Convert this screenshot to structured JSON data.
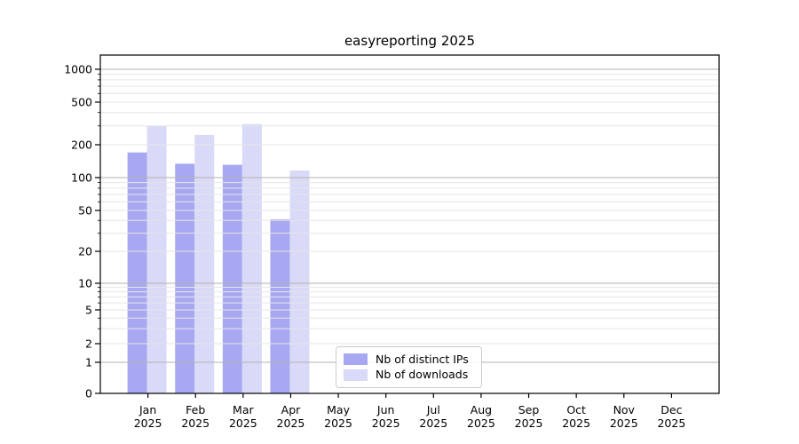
{
  "chart_data": {
    "type": "bar",
    "title": "easyreporting 2025",
    "categories": [
      "Jan 2025",
      "Feb 2025",
      "Mar 2025",
      "Apr 2025",
      "May 2025",
      "Jun 2025",
      "Jul 2025",
      "Aug 2025",
      "Sep 2025",
      "Oct 2025",
      "Nov 2025",
      "Dec 2025"
    ],
    "series": [
      {
        "name": "Nb of distinct IPs",
        "color": "#a8a8f2",
        "values": [
          170,
          134,
          131,
          41,
          null,
          null,
          null,
          null,
          null,
          null,
          null,
          null
        ]
      },
      {
        "name": "Nb of downloads",
        "color": "#d9d9f8",
        "values": [
          298,
          247,
          312,
          116,
          null,
          null,
          null,
          null,
          null,
          null,
          null,
          null
        ]
      }
    ],
    "xlabel": "",
    "ylabel": "",
    "yscale": "symlog",
    "ytick_labels": [
      "0",
      "1",
      "2",
      "5",
      "10",
      "20",
      "50",
      "100",
      "200",
      "500",
      "1000"
    ],
    "ylim": [
      0,
      1375
    ],
    "grid": true,
    "legend_position": "lower center inside",
    "colors": {
      "grid_major": "#b2b2b2",
      "grid_minor": "#e6e6e6",
      "axis": "#000000",
      "tick_text": "#000000",
      "background": "#ffffff"
    }
  }
}
